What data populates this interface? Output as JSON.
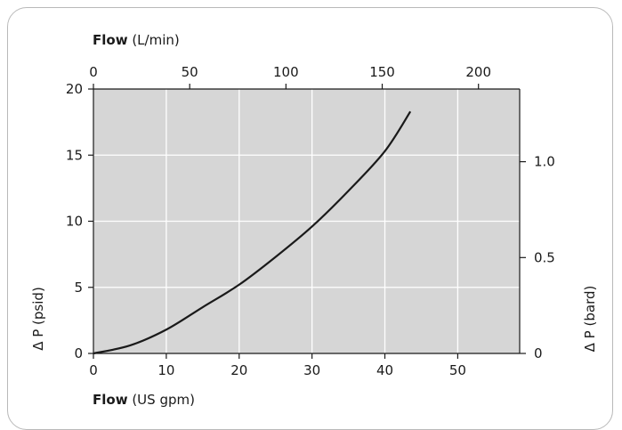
{
  "chart_data": {
    "type": "line",
    "plot_background": "#d6d6d6",
    "grid": true,
    "line_color": "#1a1a1a",
    "axes": {
      "bottom": {
        "label_bold": "Flow",
        "label_rest": " (US gpm)",
        "range": [
          0,
          58.5
        ],
        "ticks": [
          0,
          10,
          20,
          30,
          40,
          50
        ],
        "tick_labels": [
          "0",
          "10",
          "20",
          "30",
          "40",
          "50"
        ]
      },
      "top": {
        "label_bold": "Flow",
        "label_rest": " (L/min)",
        "range": [
          0,
          221.4
        ],
        "ticks": [
          0,
          50,
          100,
          150,
          200
        ],
        "tick_labels": [
          "0",
          "50",
          "100",
          "150",
          "200"
        ]
      },
      "left": {
        "label": "Δ P (psid)",
        "range": [
          0,
          20
        ],
        "ticks": [
          0,
          5,
          10,
          15,
          20
        ],
        "tick_labels": [
          "0",
          "5",
          "10",
          "15",
          "20"
        ]
      },
      "right": {
        "label": "Δ P (bard)",
        "range": [
          0,
          1.379
        ],
        "ticks": [
          0,
          0.5,
          1.0
        ],
        "tick_labels": [
          "0",
          "0.5",
          "1.0"
        ]
      }
    },
    "series": [
      {
        "x": [
          0,
          5,
          10,
          15,
          20,
          25,
          30,
          35,
          40,
          43.5
        ],
        "y": [
          0,
          0.6,
          1.8,
          3.5,
          5.2,
          7.3,
          9.6,
          12.3,
          15.3,
          18.3
        ]
      }
    ]
  }
}
